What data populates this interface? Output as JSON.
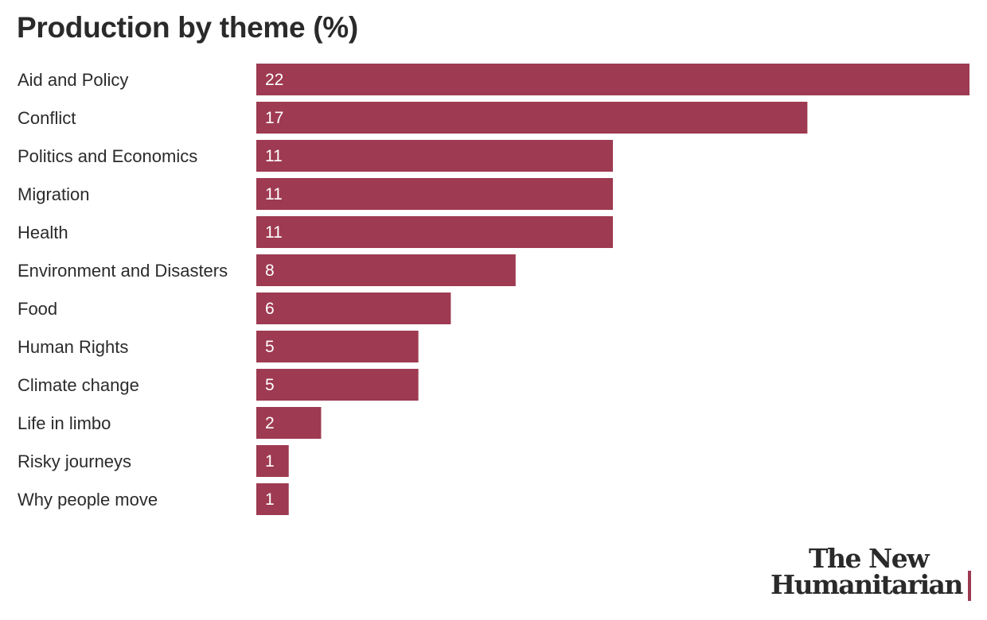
{
  "title": "Production by theme (%)",
  "colors": {
    "bar": "#9e3a51",
    "accent": "#9e3a51"
  },
  "brand": {
    "line1": "The New",
    "line2": "Humanitarian"
  },
  "chart_data": {
    "type": "bar",
    "orientation": "horizontal",
    "title": "Production by theme (%)",
    "xlabel": "",
    "ylabel": "",
    "categories": [
      "Aid and Policy",
      "Conflict",
      "Politics and Economics",
      "Migration",
      "Health",
      "Environment and Disasters",
      "Food",
      "Human Rights",
      "Climate change",
      "Life in limbo",
      "Risky journeys",
      "Why people move"
    ],
    "values": [
      22,
      17,
      11,
      11,
      11,
      8,
      6,
      5,
      5,
      2,
      1,
      1
    ],
    "value_labels": "inside-left",
    "grid": false,
    "legend": "none",
    "xlim": [
      0,
      22
    ]
  }
}
